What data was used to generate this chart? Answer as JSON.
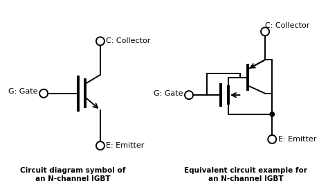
{
  "bg_color": "#ffffff",
  "line_color": "#000000",
  "text_color": "#000000",
  "left_title": "Circuit diagram symbol of\nan N-channel IGBT",
  "right_title": "Equivalent circuit example for\nan N-channel IGBT",
  "left_labels": {
    "collector": "C: Collector",
    "gate": "G: Gate",
    "emitter": "E: Emitter"
  },
  "right_labels": {
    "collector": "C: Collector",
    "gate": "G: Gate",
    "emitter": "E: Emitter"
  },
  "title_fontsize": 7.5,
  "label_fontsize": 8.0
}
